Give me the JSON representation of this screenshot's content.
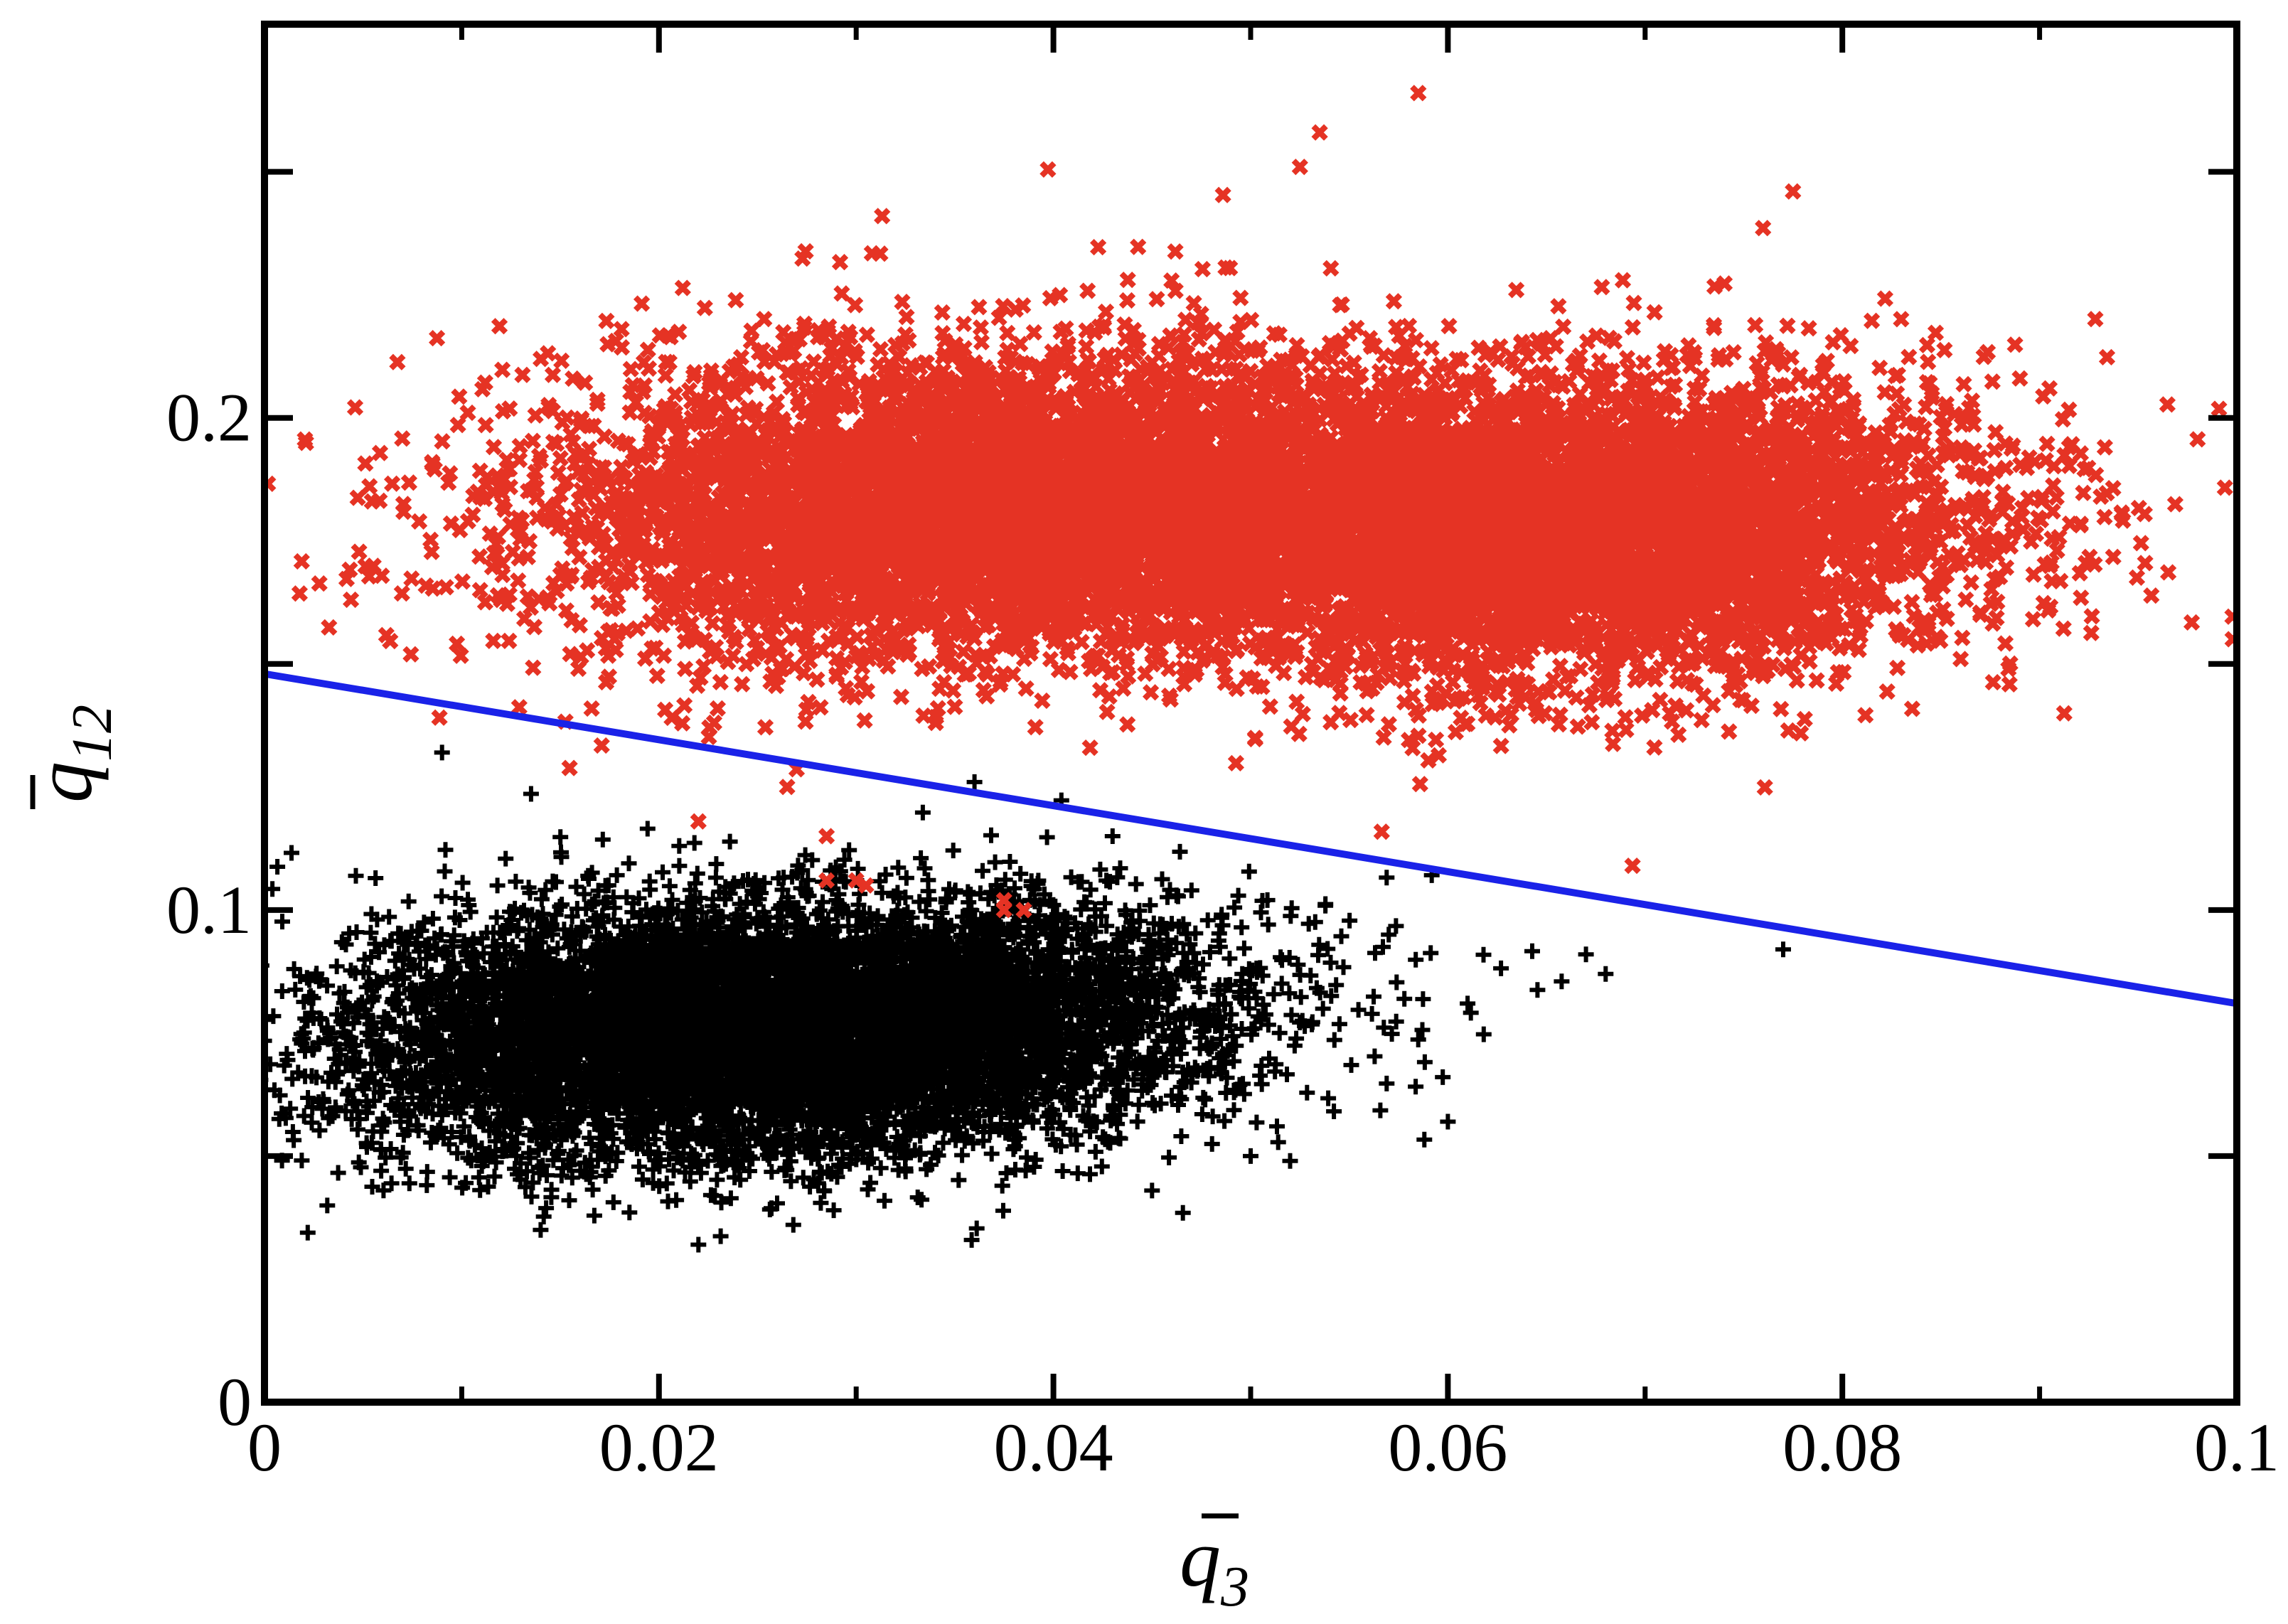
{
  "chart_data": {
    "type": "scatter",
    "title": "",
    "xlabel": {
      "base": "q",
      "subscript": "3",
      "overbar": true
    },
    "ylabel": {
      "base": "q",
      "subscript": "12",
      "overbar": true
    },
    "xlim": [
      0,
      0.1
    ],
    "ylim": [
      0,
      0.28
    ],
    "x_ticks": [
      0,
      0.02,
      0.04,
      0.06,
      0.08,
      0.1
    ],
    "x_tick_labels": [
      "0",
      "0.02",
      "0.04",
      "0.06",
      "0.08",
      "0.1"
    ],
    "y_ticks": [
      0,
      0.05,
      0.1,
      0.15,
      0.2,
      0.25
    ],
    "y_tick_labels": [
      "0",
      "",
      "0.1",
      "",
      "0.2",
      ""
    ],
    "x_minor_ticks": [
      0.01,
      0.03,
      0.05,
      0.07,
      0.09
    ],
    "grid": false,
    "legend": "none",
    "series": [
      {
        "marker": "plus",
        "color": "#000000",
        "clusters": [
          {
            "cx": 0.026,
            "cy": 0.076,
            "sx": 0.0105,
            "sy": 0.0125,
            "corr": 0.15,
            "n": 9000
          }
        ],
        "outliers": [
          [
            0.009,
            0.132
          ],
          [
            0.0015,
            0.088
          ],
          [
            0.0025,
            0.072
          ],
          [
            0.057,
            0.095
          ],
          [
            0.061,
            0.081
          ],
          [
            0.06,
            0.057
          ],
          [
            0.067,
            0.091
          ],
          [
            0.068,
            0.087
          ],
          [
            0.077,
            0.092
          ],
          [
            0.045,
            0.043
          ],
          [
            0.05,
            0.05
          ],
          [
            0.052,
            0.049
          ],
          [
            0.022,
            0.032
          ],
          [
            0.014,
            0.035
          ],
          [
            0.0055,
            0.055
          ],
          [
            0.003,
            0.061
          ],
          [
            0.043,
            0.115
          ],
          [
            0.047,
            0.104
          ],
          [
            0.036,
            0.126
          ]
        ]
      },
      {
        "marker": "x",
        "color": "#e53324",
        "clusters": [
          {
            "cx": 0.037,
            "cy": 0.183,
            "sx": 0.0115,
            "sy": 0.0155,
            "corr": 0.1,
            "n": 6000
          },
          {
            "cx": 0.066,
            "cy": 0.177,
            "sx": 0.0105,
            "sy": 0.0155,
            "corr": 0.1,
            "n": 6000
          }
        ],
        "outliers": [
          [
            0.0585,
            0.266
          ],
          [
            0.0535,
            0.258
          ],
          [
            0.0525,
            0.251
          ],
          [
            0.0775,
            0.246
          ],
          [
            0.0905,
            0.206
          ],
          [
            0.089,
            0.208
          ],
          [
            0.0915,
            0.194
          ],
          [
            0.0085,
            0.191
          ],
          [
            0.012,
            0.163
          ],
          [
            0.0285,
            0.106
          ],
          [
            0.03,
            0.106
          ],
          [
            0.0305,
            0.105
          ],
          [
            0.0375,
            0.102
          ],
          [
            0.0375,
            0.1
          ],
          [
            0.0385,
            0.1
          ],
          [
            0.0285,
            0.115
          ],
          [
            0.0265,
            0.125
          ],
          [
            0.0155,
            0.152
          ],
          [
            0.022,
            0.118
          ],
          [
            0.086,
            0.151
          ],
          [
            0.087,
            0.16
          ],
          [
            0.085,
            0.186
          ]
        ]
      }
    ],
    "lines": [
      {
        "color": "#1a22e8",
        "x": [
          0,
          0.1
        ],
        "y": [
          0.148,
          0.081
        ]
      }
    ]
  }
}
